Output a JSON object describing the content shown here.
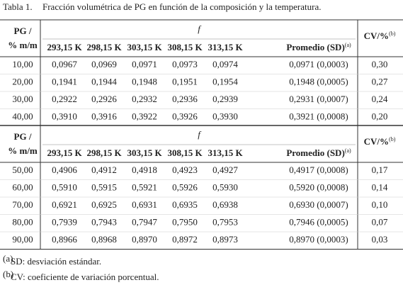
{
  "title": "Tabla 1.",
  "caption": "Fracción volumétrica de PG en función de la composición y la temperatura.",
  "blocks": [
    {
      "header": {
        "pg": [
          "PG /",
          "% m/m"
        ],
        "group": "f",
        "columns": [
          "293,15 K",
          "298,15 K",
          "303,15 K",
          "308,15 K",
          "313,15 K"
        ],
        "promedio": "Promedio (SD)",
        "promedio_note": "(a)",
        "cv": "CV/%",
        "cv_note": "(b)"
      },
      "rows": [
        [
          "10,00",
          "0,0967",
          "0,0969",
          "0,0971",
          "0,0973",
          "0,0974",
          "0,0971 (0,0003)",
          "0,30"
        ],
        [
          "20,00",
          "0,1941",
          "0,1944",
          "0,1948",
          "0,1951",
          "0,1954",
          "0,1948 (0,0005)",
          "0,27"
        ],
        [
          "30,00",
          "0,2922",
          "0,2926",
          "0,2932",
          "0,2936",
          "0,2939",
          "0,2931 (0,0007)",
          "0,24"
        ],
        [
          "40,00",
          "0,3910",
          "0,3916",
          "0,3922",
          "0,3926",
          "0,3930",
          "0,3921 (0,0008)",
          "0,20"
        ]
      ]
    },
    {
      "header": {
        "pg": [
          "PG /",
          "% m/m"
        ],
        "group": "f",
        "columns": [
          "293,15 K",
          "298,15 K",
          "303,15 K",
          "308,15 K",
          "313,15 K"
        ],
        "promedio": "Promedio (SD)",
        "promedio_note": "(a)",
        "cv": "CV/%",
        "cv_note": "(b)"
      },
      "rows": [
        [
          "50,00",
          "0,4906",
          "0,4912",
          "0,4918",
          "0,4923",
          "0,4927",
          "0,4917 (0,0008)",
          "0,17"
        ],
        [
          "60,00",
          "0,5910",
          "0,5915",
          "0,5921",
          "0,5926",
          "0,5930",
          "0,5920 (0,0008)",
          "0,14"
        ],
        [
          "70,00",
          "0,6921",
          "0,6925",
          "0,6931",
          "0,6935",
          "0,6938",
          "0,6930 (0,0007)",
          "0,10"
        ],
        [
          "80,00",
          "0,7939",
          "0,7943",
          "0,7947",
          "0,7950",
          "0,7953",
          "0,7946 (0,0005)",
          "0,07"
        ],
        [
          "90,00",
          "0,8966",
          "0,8968",
          "0,8970",
          "0,8972",
          "0,8973",
          "0,8970 (0,0003)",
          "0,03"
        ]
      ]
    }
  ],
  "footnotes": [
    {
      "mark": "(a)",
      "text": "SD: desviación estándar."
    },
    {
      "mark": "(b)",
      "text": "CV: coeficiente de variación porcentual."
    }
  ]
}
